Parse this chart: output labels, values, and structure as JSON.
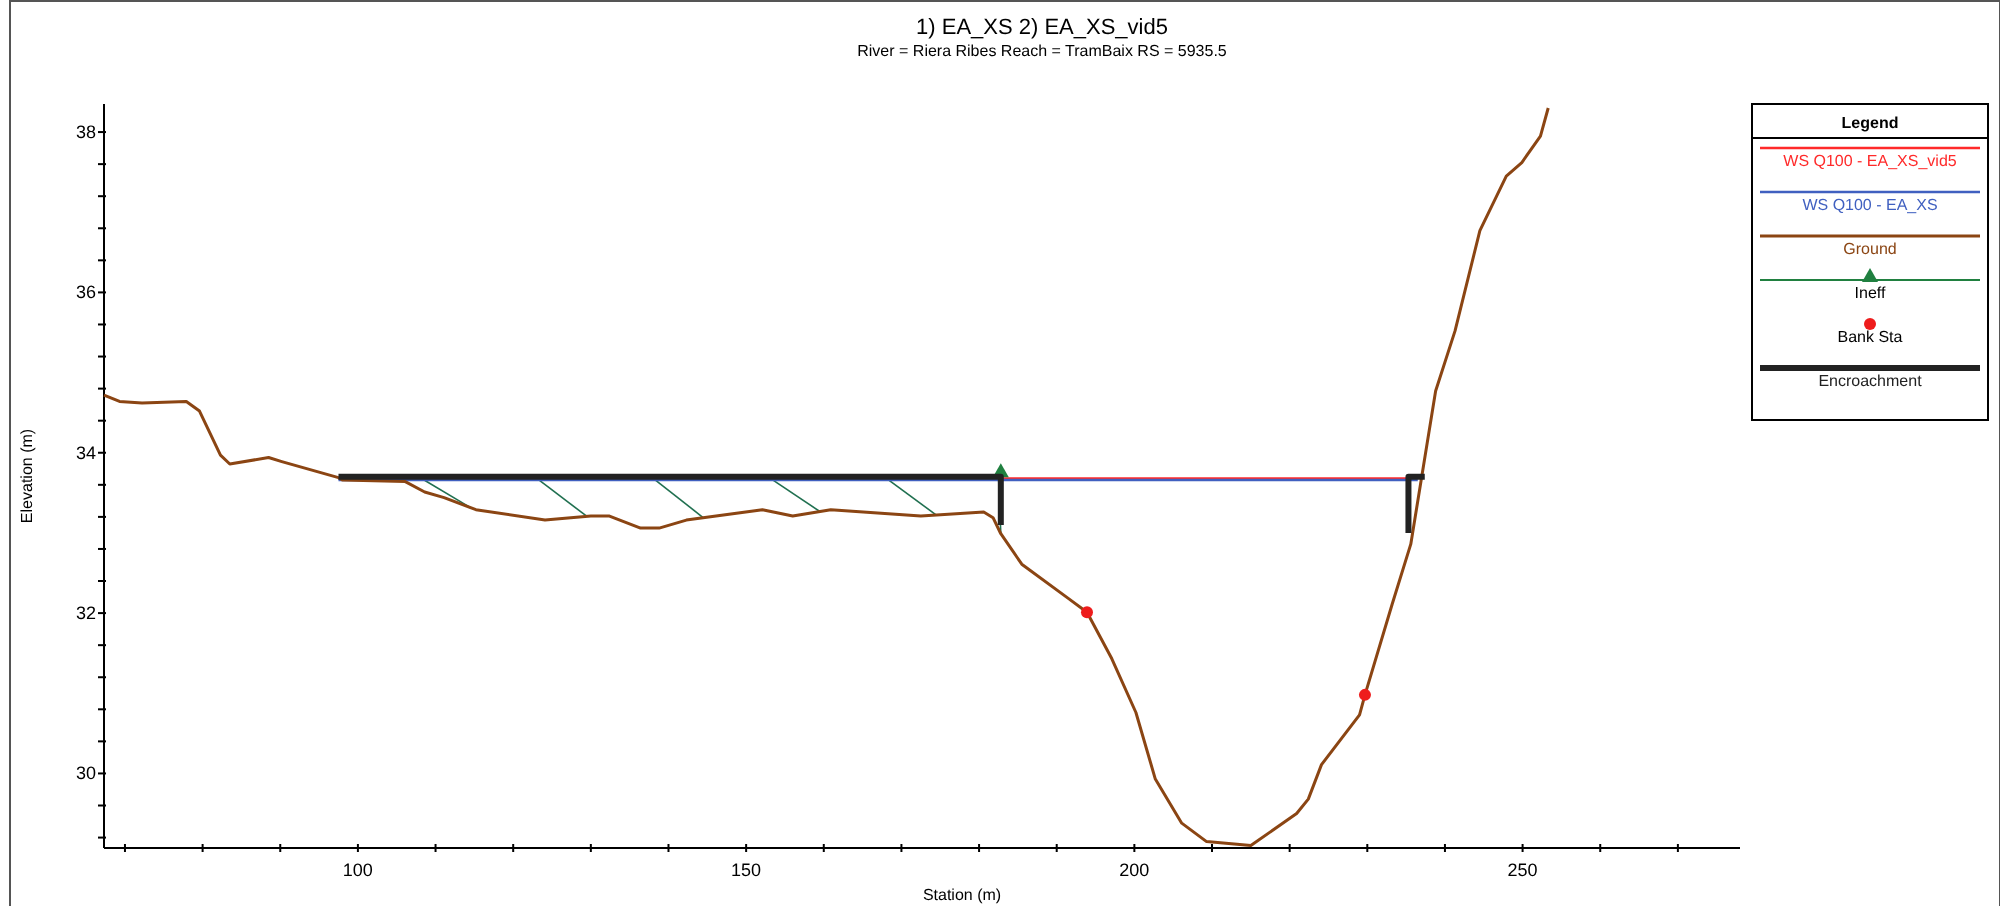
{
  "chart_data": {
    "type": "line",
    "title": "1) EA_XS    2) EA_XS_vid5",
    "subtitle": "River = Riera Ribes    Reach = TramBaix        RS = 5935.5",
    "xlabel": "Station (m)",
    "ylabel": "Elevation (m)",
    "legend_title": "Legend",
    "legend": "top right",
    "grid": false,
    "xlim": [
      67.3,
      278
    ],
    "ylim": [
      29.07,
      38.35
    ],
    "xticks": [
      {
        "value": 70,
        "label": null
      },
      {
        "value": 80,
        "label": null
      },
      {
        "value": 90,
        "label": null
      },
      100,
      {
        "value": 110,
        "label": null
      },
      {
        "value": 120,
        "label": null
      },
      {
        "value": 130,
        "label": null
      },
      {
        "value": 140,
        "label": null
      },
      150,
      {
        "value": 160,
        "label": null
      },
      {
        "value": 170,
        "label": null
      },
      {
        "value": 180,
        "label": null
      },
      {
        "value": 190,
        "label": null
      },
      200,
      {
        "value": 210,
        "label": null
      },
      {
        "value": 220,
        "label": null
      },
      {
        "value": 230,
        "label": null
      },
      {
        "value": 240,
        "label": null
      },
      250,
      {
        "value": 260,
        "label": null
      },
      {
        "value": 270,
        "label": null
      }
    ],
    "yticks": [
      {
        "value": 29.2,
        "label": null
      },
      {
        "value": 29.6,
        "label": null
      },
      30,
      {
        "value": 30.4,
        "label": null
      },
      {
        "value": 30.8,
        "label": null
      },
      {
        "value": 31.2,
        "label": null
      },
      {
        "value": 31.6,
        "label": null
      },
      32,
      {
        "value": 32.4,
        "label": null
      },
      {
        "value": 32.8,
        "label": null
      },
      {
        "value": 33.2,
        "label": null
      },
      {
        "value": 33.6,
        "label": null
      },
      34,
      {
        "value": 34.4,
        "label": null
      },
      {
        "value": 34.8,
        "label": null
      },
      {
        "value": 35.2,
        "label": null
      },
      {
        "value": 35.6,
        "label": null
      },
      36,
      {
        "value": 36.4,
        "label": null
      },
      {
        "value": 36.8,
        "label": null
      },
      {
        "value": 37.2,
        "label": null
      },
      {
        "value": 37.6,
        "label": null
      },
      38
    ],
    "series": [
      {
        "name": "WS Q100 - EA_XS_vid5",
        "marker": "none",
        "color": "#ff2a2a",
        "x": [
          182.8,
          235.3
        ],
        "values": [
          33.68,
          33.68
        ]
      },
      {
        "name": "WS Q100 - EA_XS",
        "marker": "none",
        "color": "#4060c0",
        "x": [
          97.5,
          236.5
        ],
        "values": [
          33.66,
          33.66
        ]
      },
      {
        "name": "Ground",
        "marker": "none",
        "color": "#8b4513",
        "x": [
          67.3,
          69.3,
          72.2,
          77.9,
          79.6,
          82.3,
          83.5,
          88.5,
          90.2,
          97.5,
          98.0,
          106.1,
          108.6,
          111.1,
          115.2,
          124.1,
          130.0,
          132.4,
          136.4,
          138.8,
          142.3,
          152.1,
          156.0,
          160.9,
          172.5,
          180.6,
          181.8,
          182.8,
          185.5,
          191.4,
          193.9,
          197.1,
          200.2,
          202.7,
          206.1,
          209.3,
          215.0,
          220.9,
          222.4,
          224.1,
          229.0,
          229.7,
          233.2,
          235.6,
          238.8,
          241.3,
          244.5,
          247.9,
          249.9,
          252.3,
          253.3
        ],
        "values": [
          34.72,
          34.64,
          34.62,
          34.64,
          34.52,
          33.97,
          33.86,
          33.94,
          33.89,
          33.69,
          33.66,
          33.64,
          33.51,
          33.44,
          33.29,
          33.16,
          33.21,
          33.21,
          33.06,
          33.06,
          33.16,
          33.29,
          33.21,
          33.29,
          33.21,
          33.26,
          33.19,
          32.99,
          32.61,
          32.19,
          32.01,
          31.43,
          30.76,
          29.93,
          29.38,
          29.15,
          29.1,
          29.5,
          29.68,
          30.11,
          30.73,
          30.98,
          32.11,
          32.86,
          34.77,
          35.52,
          36.77,
          37.45,
          37.62,
          37.95,
          38.3
        ]
      },
      {
        "name": "Ineff",
        "type": "scatter",
        "marker": "triangle",
        "color": "#208040",
        "x": [
          182.8
        ],
        "values": [
          33.72
        ]
      },
      {
        "name": "Bank Sta",
        "type": "scatter",
        "marker": "circle",
        "color": "#ee1c1c",
        "x": [
          193.9,
          229.7
        ],
        "values": [
          32.01,
          30.98
        ]
      },
      {
        "name": "Encroachment",
        "marker": "none",
        "color": "#222222",
        "x": [
          97.5,
          182.8,
          182.8,
          null,
          235.3,
          235.3,
          237.4
        ],
        "values": [
          33.7,
          33.7,
          33.1,
          null,
          33.0,
          33.7,
          33.7
        ]
      }
    ]
  }
}
